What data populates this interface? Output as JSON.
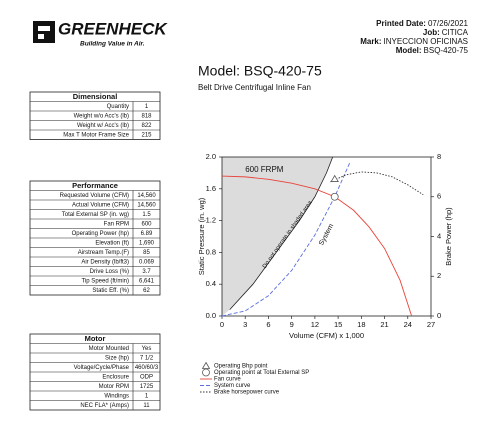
{
  "header": {
    "logo": "GREENHECK",
    "tagline": "Building Value in Air.",
    "info": [
      [
        "Printed Date:",
        "07/26/2021"
      ],
      [
        "Job:",
        "CITICA"
      ],
      [
        "Mark:",
        "INYECCION OFICINAS"
      ],
      [
        "Model:",
        "BSQ-420-75"
      ]
    ],
    "title": "Model: BSQ-420-75",
    "subtitle": "Belt Drive Centrifugal Inline Fan"
  },
  "tables": [
    {
      "title": "Dimensional",
      "rows": [
        [
          "Quantity",
          "1"
        ],
        [
          "Weight w/o Acc's (lb)",
          "818"
        ],
        [
          "Weight w/ Acc's (lb)",
          "822"
        ],
        [
          "Max T Motor Frame Size",
          "215"
        ]
      ]
    },
    {
      "title": "Performance",
      "rows": [
        [
          "Requested Volume (CFM)",
          "14,560"
        ],
        [
          "Actual Volume (CFM)",
          "14,560"
        ],
        [
          "Total External SP (in. wg)",
          "1.5"
        ],
        [
          "Fan RPM",
          "600"
        ],
        [
          "Operating Power (hp)",
          "6.89"
        ],
        [
          "Elevation (ft)",
          "1,690"
        ],
        [
          "Airstream Temp.(F)",
          "85"
        ],
        [
          "Air Density (lb/ft3)",
          "0.069"
        ],
        [
          "Drive Loss (%)",
          "3.7"
        ],
        [
          "Tip Speed (ft/min)",
          "6,641"
        ],
        [
          "Static Eff. (%)",
          "62"
        ]
      ]
    },
    {
      "title": "Motor",
      "rows": [
        [
          "Motor Mounted",
          "Yes"
        ],
        [
          "Size (hp)",
          "7 1/2"
        ],
        [
          "Voltage/Cycle/Phase",
          "460/60/3"
        ],
        [
          "Enclosure",
          "ODP"
        ],
        [
          "Motor RPM",
          "1725"
        ],
        [
          "Windings",
          "1"
        ],
        [
          "NEC FLA* (Amps)",
          "11"
        ]
      ]
    }
  ],
  "chart_data": {
    "type": "line",
    "x_label": "Volume (CFM) x 1,000",
    "y_label": "Static Pressure (in. wg)",
    "y2_label": "Brake Power (hp)",
    "xlim": [
      0,
      27
    ],
    "xticks": [
      0,
      3,
      6,
      9,
      12,
      15,
      18,
      21,
      24,
      27
    ],
    "ylim": [
      0,
      2
    ],
    "yticks": [
      {
        "value": 0,
        "label": "0.0"
      },
      0.4,
      0.8,
      1.2,
      1.6,
      {
        "value": 2,
        "label": "2.0"
      }
    ],
    "y2lim": [
      0,
      8
    ],
    "y2ticks": [
      0,
      2,
      4,
      6,
      8
    ],
    "series": [
      {
        "name": "Fan curve",
        "color": "#e8443a",
        "dash": "none",
        "x": [
          0,
          3,
          6,
          9,
          12,
          14.56,
          17,
          19,
          21,
          23,
          24.5
        ],
        "values": [
          1.76,
          1.75,
          1.72,
          1.67,
          1.6,
          1.5,
          1.33,
          1.12,
          0.85,
          0.45,
          0
        ]
      },
      {
        "name": "System curve",
        "color": "#5a6ee0",
        "dash": "4 2",
        "x": [
          0,
          3,
          6,
          9,
          12,
          14.56,
          16.5
        ],
        "values": [
          0,
          0.064,
          0.255,
          0.573,
          1.019,
          1.5,
          1.926
        ]
      },
      {
        "name": "Brake horsepower curve",
        "color": "#333333",
        "dash": "1.5 1.5",
        "axis": "y2",
        "x": [
          14,
          16,
          18,
          20,
          22,
          24,
          26
        ],
        "values": [
          6.75,
          7.1,
          7.25,
          7.2,
          7.0,
          6.6,
          6.1
        ]
      }
    ],
    "points": [
      {
        "name": "Operating Bhp point",
        "marker": "triangle",
        "axis": "y2",
        "x": 14.56,
        "value": 6.89
      },
      {
        "name": "Operating point at Total External SP",
        "marker": "circle",
        "x": 14.56,
        "value": 1.5
      }
    ],
    "shaded_area": {
      "label": "Do not operate in shaded area",
      "color": "#dcdcdc",
      "x": [
        1,
        4,
        7,
        10,
        12,
        13.5,
        14.3
      ],
      "values": [
        0.08,
        0.4,
        0.8,
        1.2,
        1.5,
        1.8,
        2.0
      ]
    },
    "fan_label": "600 FRPM",
    "system_label": "System"
  }
}
